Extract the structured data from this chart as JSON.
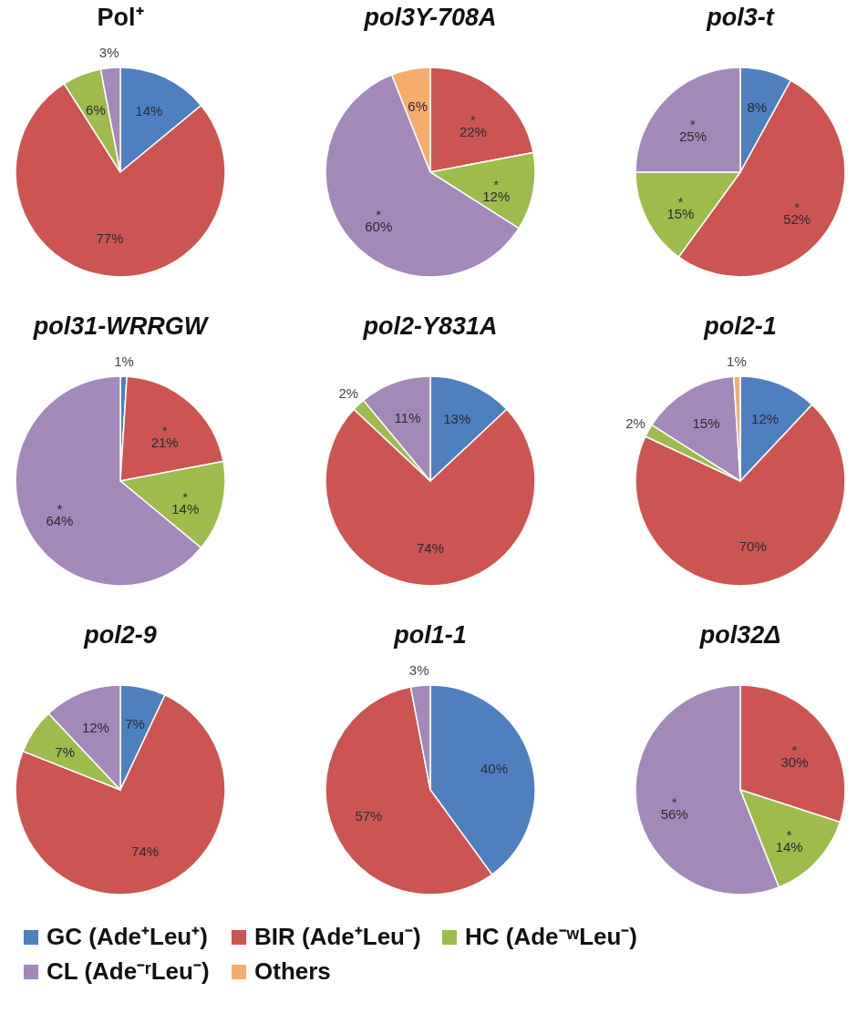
{
  "chart_data": [
    {
      "type": "pie",
      "title": "Pol⁺",
      "categories": [
        null,
        null,
        null,
        null,
        null
      ],
      "values": [
        14,
        77,
        6,
        3,
        null
      ],
      "colors": [
        "#4e80bf",
        "#cc5551",
        "#9ebb4c",
        "#a389ba",
        "#f5ad6b"
      ],
      "value_labels": [
        "14%",
        "77%",
        "6%",
        "3%",
        null
      ],
      "legend": false
    },
    {
      "type": "pie",
      "title": "pol3Y-708A",
      "categories": [
        null,
        null,
        null,
        null,
        null
      ],
      "values": [
        null,
        22,
        12,
        60,
        6
      ],
      "colors": [
        "#4e80bf",
        "#cc5551",
        "#9ebb4c",
        "#a389ba",
        "#f5ad6b"
      ],
      "value_labels": [
        null,
        "*\n22%",
        "*\n12%",
        "*\n60%",
        "6%"
      ],
      "legend": false
    },
    {
      "type": "pie",
      "title": "pol3-t",
      "categories": [
        null,
        null,
        null,
        null,
        null
      ],
      "values": [
        8,
        52,
        15,
        25,
        null
      ],
      "colors": [
        "#4e80bf",
        "#cc5551",
        "#9ebb4c",
        "#a389ba",
        "#f5ad6b"
      ],
      "value_labels": [
        "8%",
        "*\n52%",
        "*\n15%",
        "*\n25%",
        null
      ],
      "legend": false
    },
    {
      "type": "pie",
      "title": "pol31-WRRGW",
      "categories": [
        null,
        null,
        null,
        null,
        null
      ],
      "values": [
        1,
        21,
        14,
        64,
        null
      ],
      "colors": [
        "#4e80bf",
        "#cc5551",
        "#9ebb4c",
        "#a389ba",
        "#f5ad6b"
      ],
      "value_labels": [
        "1%",
        "*\n21%",
        "*\n14%",
        "*\n64%",
        null
      ],
      "legend": false
    },
    {
      "type": "pie",
      "title": "pol2-Y831A",
      "categories": [
        null,
        null,
        null,
        null,
        null
      ],
      "values": [
        13,
        74,
        2,
        11,
        null
      ],
      "colors": [
        "#4e80bf",
        "#cc5551",
        "#9ebb4c",
        "#a389ba",
        "#f5ad6b"
      ],
      "value_labels": [
        "13%",
        "74%",
        "2%",
        "11%",
        null
      ],
      "legend": false
    },
    {
      "type": "pie",
      "title": "pol2-1",
      "categories": [
        null,
        null,
        null,
        null,
        null
      ],
      "values": [
        12,
        70,
        2,
        15,
        1
      ],
      "colors": [
        "#4e80bf",
        "#cc5551",
        "#9ebb4c",
        "#a389ba",
        "#f5ad6b"
      ],
      "value_labels": [
        "12%",
        "70%",
        "2%",
        "15%",
        "1%"
      ],
      "legend": false
    },
    {
      "type": "pie",
      "title": "pol2-9",
      "categories": [
        "GC (Ade⁺Leu⁺)",
        "BIR (Ade⁺Leu⁻)",
        "HC (Ade⁻ʷLeu⁻)",
        "CL (Ade⁻ʳLeu⁻)",
        "Others"
      ],
      "values": [
        7,
        74,
        7,
        12,
        null
      ],
      "colors": [
        "#4e80bf",
        "#cc5551",
        "#9ebb4c",
        "#a389ba",
        "#f5ad6b"
      ],
      "value_labels": [
        "7%",
        "74%",
        "7%",
        "12%",
        null
      ],
      "legend": "bottom"
    },
    {
      "type": "pie",
      "title": "pol1-1",
      "categories": [
        null,
        null,
        null,
        null,
        null
      ],
      "values": [
        40,
        57,
        null,
        3,
        null
      ],
      "colors": [
        "#4e80bf",
        "#cc5551",
        "#9ebb4c",
        "#a389ba",
        "#f5ad6b"
      ],
      "value_labels": [
        "40%",
        "57%",
        null,
        "3%",
        null
      ],
      "legend": false
    },
    {
      "type": "pie",
      "title": "pol32Δ",
      "categories": [
        null,
        null,
        null,
        null,
        null
      ],
      "values": [
        null,
        30,
        14,
        56,
        null
      ],
      "colors": [
        "#4e80bf",
        "#cc5551",
        "#9ebb4c",
        "#a389ba",
        "#f5ad6b"
      ],
      "value_labels": [
        null,
        "*\n30%",
        "*\n14%",
        "*\n56%",
        null
      ],
      "legend": false
    }
  ]
}
